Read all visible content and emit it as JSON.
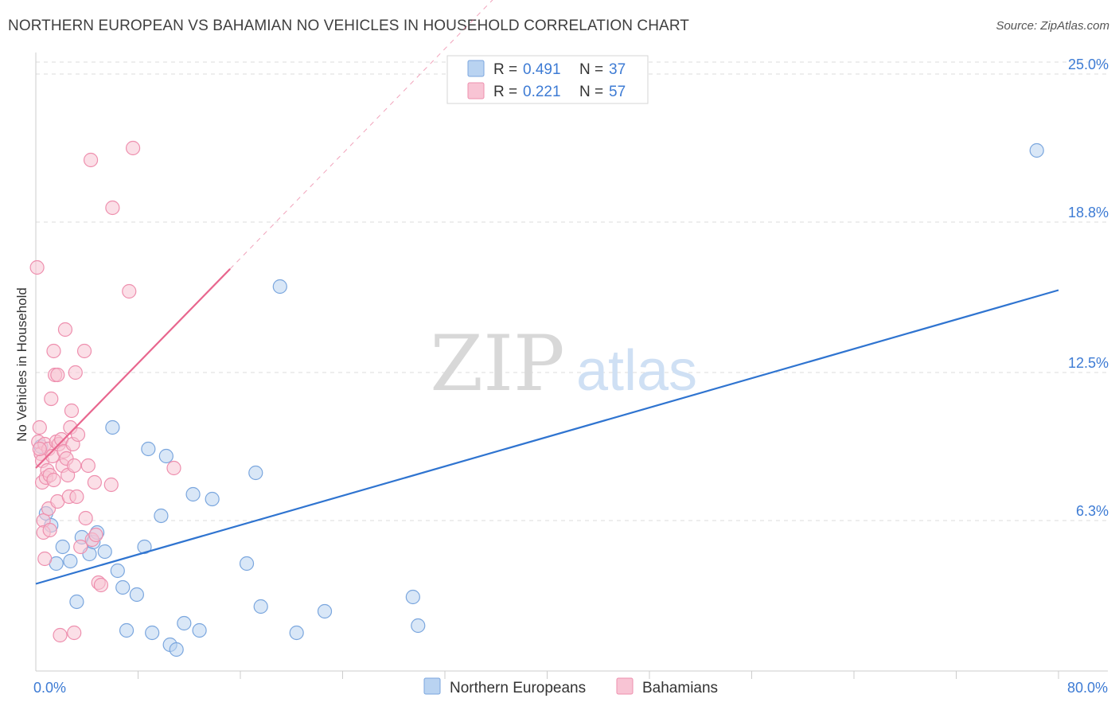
{
  "title": "NORTHERN EUROPEAN VS BAHAMIAN NO VEHICLES IN HOUSEHOLD CORRELATION CHART",
  "source": "Source: ZipAtlas.com",
  "watermark": {
    "zip": "ZIP",
    "atlas": "atlas"
  },
  "colors": {
    "blue_fill": "#b9d3f1",
    "blue_stroke": "#7aa6de",
    "blue_line": "#2f74d0",
    "pink_fill": "#f8c4d4",
    "pink_stroke": "#ee8fae",
    "pink_line": "#e8668e",
    "tick_label": "#3d7bd4",
    "grid": "#dddddd"
  },
  "legend": {
    "rows": [
      {
        "r_label": "R =",
        "r_value": "0.491",
        "n_label": "N =",
        "n_value": "37",
        "series": "blue"
      },
      {
        "r_label": "R =",
        "r_value": "0.221",
        "n_label": "N =",
        "n_value": "57",
        "series": "pink"
      }
    ]
  },
  "chart_data": {
    "type": "scatter",
    "title": "NORTHERN EUROPEAN VS BAHAMIAN NO VEHICLES IN HOUSEHOLD CORRELATION CHART",
    "xlabel": "",
    "ylabel": "No Vehicles in Household",
    "xlim": [
      0,
      80
    ],
    "ylim": [
      0,
      25.7
    ],
    "x_tick_labels": [
      {
        "value": 0,
        "label": "0.0%"
      },
      {
        "value": 80,
        "label": "80.0%"
      }
    ],
    "x_minor_ticks": [
      8,
      16,
      24,
      32,
      40,
      48,
      56,
      64,
      72,
      80
    ],
    "y_ticks": [
      {
        "value": 6.3,
        "label": "6.3%"
      },
      {
        "value": 12.5,
        "label": "12.5%"
      },
      {
        "value": 18.8,
        "label": "18.8%"
      },
      {
        "value": 25.0,
        "label": "25.0%"
      }
    ],
    "grid": true,
    "legend_position": "top-center",
    "series": [
      {
        "name": "Northern Europeans",
        "color_key": "blue",
        "r": 0.491,
        "n": 37,
        "trend": {
          "x0": 0,
          "y0": 3.65,
          "x1": 80,
          "y1": 15.95,
          "solid_to": 80
        },
        "points": [
          [
            0.8,
            6.6
          ],
          [
            1.2,
            6.1
          ],
          [
            1.6,
            4.5
          ],
          [
            2.1,
            5.2
          ],
          [
            2.7,
            4.6
          ],
          [
            3.2,
            2.9
          ],
          [
            3.6,
            5.6
          ],
          [
            4.2,
            4.9
          ],
          [
            4.5,
            5.4
          ],
          [
            4.8,
            5.8
          ],
          [
            5.4,
            5.0
          ],
          [
            6.0,
            10.2
          ],
          [
            6.4,
            4.2
          ],
          [
            6.8,
            3.5
          ],
          [
            7.1,
            1.7
          ],
          [
            7.9,
            3.2
          ],
          [
            8.5,
            5.2
          ],
          [
            8.8,
            9.3
          ],
          [
            9.1,
            1.6
          ],
          [
            9.8,
            6.5
          ],
          [
            10.2,
            9.0
          ],
          [
            10.5,
            1.1
          ],
          [
            11.0,
            0.9
          ],
          [
            11.6,
            2.0
          ],
          [
            12.3,
            7.4
          ],
          [
            12.8,
            1.7
          ],
          [
            13.8,
            7.2
          ],
          [
            16.5,
            4.5
          ],
          [
            17.2,
            8.3
          ],
          [
            17.6,
            2.7
          ],
          [
            19.1,
            16.1
          ],
          [
            20.4,
            1.6
          ],
          [
            22.6,
            2.5
          ],
          [
            29.5,
            3.1
          ],
          [
            29.9,
            1.9
          ],
          [
            78.3,
            21.8
          ],
          [
            0.4,
            9.4
          ]
        ]
      },
      {
        "name": "Bahamians",
        "color_key": "pink",
        "r": 0.221,
        "n": 57,
        "trend": {
          "x0": 0,
          "y0": 8.5,
          "x1": 37,
          "y1": 28.8,
          "solid_to": 15.2
        },
        "points": [
          [
            0.1,
            16.9
          ],
          [
            0.2,
            9.6
          ],
          [
            0.3,
            10.2
          ],
          [
            0.4,
            9.1
          ],
          [
            0.5,
            8.8
          ],
          [
            0.5,
            7.9
          ],
          [
            0.6,
            6.3
          ],
          [
            0.6,
            5.8
          ],
          [
            0.7,
            4.7
          ],
          [
            0.7,
            9.5
          ],
          [
            0.8,
            8.1
          ],
          [
            0.9,
            8.4
          ],
          [
            1.0,
            9.3
          ],
          [
            1.0,
            6.8
          ],
          [
            1.1,
            5.9
          ],
          [
            1.1,
            8.2
          ],
          [
            1.2,
            11.4
          ],
          [
            1.3,
            9.0
          ],
          [
            1.4,
            8.0
          ],
          [
            1.4,
            13.4
          ],
          [
            1.5,
            12.4
          ],
          [
            1.6,
            9.6
          ],
          [
            1.7,
            12.4
          ],
          [
            1.7,
            7.1
          ],
          [
            1.8,
            9.5
          ],
          [
            1.9,
            1.5
          ],
          [
            2.0,
            9.7
          ],
          [
            2.1,
            8.6
          ],
          [
            2.2,
            9.2
          ],
          [
            2.3,
            14.3
          ],
          [
            2.4,
            8.9
          ],
          [
            2.5,
            8.2
          ],
          [
            2.6,
            7.3
          ],
          [
            2.7,
            10.2
          ],
          [
            2.8,
            10.9
          ],
          [
            2.9,
            9.5
          ],
          [
            3.0,
            8.6
          ],
          [
            3.0,
            1.6
          ],
          [
            3.1,
            12.5
          ],
          [
            3.2,
            7.3
          ],
          [
            3.3,
            9.9
          ],
          [
            3.5,
            5.2
          ],
          [
            3.8,
            13.4
          ],
          [
            3.9,
            6.4
          ],
          [
            4.1,
            8.6
          ],
          [
            4.3,
            21.4
          ],
          [
            4.4,
            5.5
          ],
          [
            4.6,
            7.9
          ],
          [
            4.7,
            5.7
          ],
          [
            4.9,
            3.7
          ],
          [
            5.1,
            3.6
          ],
          [
            5.9,
            7.8
          ],
          [
            6.0,
            19.4
          ],
          [
            7.3,
            15.9
          ],
          [
            7.6,
            21.9
          ],
          [
            10.8,
            8.5
          ],
          [
            0.3,
            9.3
          ]
        ]
      }
    ],
    "bottom_legend": [
      {
        "label": "Northern Europeans",
        "color_key": "blue"
      },
      {
        "label": "Bahamians",
        "color_key": "pink"
      }
    ]
  }
}
